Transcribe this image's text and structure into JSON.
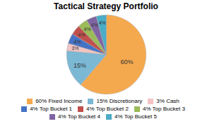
{
  "chart_data": {
    "type": "pie",
    "title": "Tactical Strategy Portfolio",
    "categories": [
      "60% Fixed Income",
      "15% Discretionary",
      "3% Cash",
      "4% Top Bucket 1",
      "4% Top Bucket 2",
      "4% Top Bucket 3",
      "4% Top Bucket 4",
      "4% Top Bucket 5"
    ],
    "values": [
      60,
      15,
      3,
      4,
      4,
      4,
      4,
      4
    ],
    "value_labels": [
      "60%",
      "15%",
      "3%",
      "4%",
      "4%",
      "4%",
      "4%",
      "4%"
    ],
    "colors": [
      "#F5A94E",
      "#7BB8D4",
      "#F2C4C4",
      "#4472C4",
      "#C0504D",
      "#9BBB59",
      "#8064A2",
      "#4BACC6"
    ],
    "data_labels": true,
    "legend": "bottom"
  }
}
